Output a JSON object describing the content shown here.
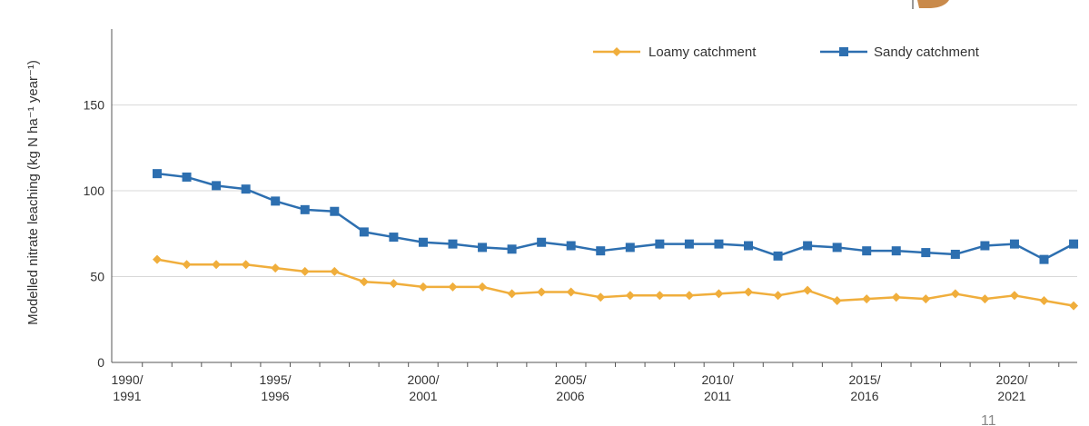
{
  "chart_data": {
    "type": "line",
    "title": "",
    "xlabel": "",
    "ylabel": "Modelled nitrate leaching (kg N ha⁻¹ year⁻¹)",
    "ylim": [
      0,
      190
    ],
    "yticks": [
      0,
      50,
      100,
      150
    ],
    "grid": true,
    "legend_position": "top-right",
    "x": [
      1991,
      1992,
      1993,
      1994,
      1995,
      1996,
      1997,
      1998,
      1999,
      2000,
      2001,
      2002,
      2003,
      2004,
      2005,
      2006,
      2007,
      2008,
      2009,
      2010,
      2011,
      2012,
      2013,
      2014,
      2015,
      2016,
      2017,
      2018,
      2019,
      2020,
      2021,
      2022
    ],
    "xticks": [
      {
        "line1": "1990/",
        "line2": "1991"
      },
      {
        "line1": "1995/",
        "line2": "1996"
      },
      {
        "line1": "2000/",
        "line2": "2001"
      },
      {
        "line1": "2005/",
        "line2": "2006"
      },
      {
        "line1": "2010/",
        "line2": "2011"
      },
      {
        "line1": "2015/",
        "line2": "2016"
      },
      {
        "line1": "2020/",
        "line2": "2021"
      }
    ],
    "series": [
      {
        "name": "Loamy catchment",
        "color": "#F0AE3C",
        "marker": "diamond",
        "values": [
          60,
          57,
          57,
          57,
          55,
          53,
          53,
          47,
          46,
          44,
          44,
          44,
          40,
          41,
          41,
          38,
          39,
          39,
          39,
          40,
          41,
          39,
          42,
          36,
          37,
          38,
          37,
          40,
          37,
          39,
          36,
          33
        ]
      },
      {
        "name": "Sandy catchment",
        "color": "#2D6FB0",
        "marker": "square",
        "values": [
          110,
          108,
          103,
          101,
          94,
          89,
          88,
          76,
          73,
          70,
          69,
          67,
          66,
          70,
          68,
          65,
          67,
          69,
          69,
          69,
          68,
          62,
          68,
          67,
          65,
          65,
          64,
          63,
          68,
          69,
          60,
          69
        ]
      }
    ]
  },
  "footer": {
    "page_number": "11"
  }
}
